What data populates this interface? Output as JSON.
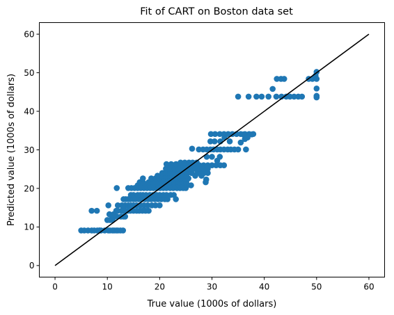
{
  "chart_data": {
    "type": "scatter",
    "title": "Fit of CART on Boston data set",
    "xlabel": "True value (1000s of dollars)",
    "ylabel": "Predicted value (1000s of dollars)",
    "xlim": [
      -3,
      63
    ],
    "ylim": [
      -3,
      63
    ],
    "xticks": [
      0,
      10,
      20,
      30,
      40,
      50,
      60
    ],
    "yticks": [
      0,
      10,
      20,
      30,
      40,
      50,
      60
    ],
    "grid": false,
    "series": [
      {
        "marker_color": "#1f77b4",
        "points": [
          [
            5,
            9.1
          ],
          [
            5.6,
            9.1
          ],
          [
            6.3,
            9.1
          ],
          [
            7,
            9.1
          ],
          [
            7.5,
            9.1
          ],
          [
            8.1,
            9.1
          ],
          [
            8.5,
            9.1
          ],
          [
            8.8,
            9.1
          ],
          [
            9.5,
            9.1
          ],
          [
            10.2,
            9.1
          ],
          [
            10.5,
            9.1
          ],
          [
            11,
            9.1
          ],
          [
            11.3,
            9.1
          ],
          [
            11.7,
            9.1
          ],
          [
            12,
            9.1
          ],
          [
            12.5,
            9.1
          ],
          [
            13,
            9.1
          ],
          [
            7,
            14.2
          ],
          [
            8,
            14.2
          ],
          [
            8.5,
            9.1
          ],
          [
            10,
            11.8
          ],
          [
            10.5,
            11.8
          ],
          [
            11,
            11.8
          ],
          [
            10.2,
            15.6
          ],
          [
            11,
            12.7
          ],
          [
            11.8,
            12.7
          ],
          [
            12.6,
            12.7
          ],
          [
            13.1,
            12.7
          ],
          [
            13.4,
            12.7
          ],
          [
            10.4,
            13.3
          ],
          [
            11.2,
            13.3
          ],
          [
            11.7,
            14.2
          ],
          [
            12,
            14.2
          ],
          [
            12.7,
            14.2
          ],
          [
            13.1,
            14.2
          ],
          [
            13.5,
            14.2
          ],
          [
            13.9,
            14.2
          ],
          [
            14.4,
            14.2
          ],
          [
            15,
            14.2
          ],
          [
            15.6,
            14.2
          ],
          [
            16.1,
            14.2
          ],
          [
            16.7,
            14.2
          ],
          [
            17.3,
            14.2
          ],
          [
            17.9,
            14.2
          ],
          [
            12,
            15.6
          ],
          [
            12.8,
            15.6
          ],
          [
            13.4,
            15.6
          ],
          [
            14,
            15.6
          ],
          [
            14.5,
            15.6
          ],
          [
            15,
            15.6
          ],
          [
            15.6,
            15.6
          ],
          [
            16.3,
            15.6
          ],
          [
            17,
            15.6
          ],
          [
            17.7,
            15.6
          ],
          [
            18.5,
            15.6
          ],
          [
            19.2,
            15.6
          ],
          [
            20,
            15.6
          ],
          [
            13.1,
            17.2
          ],
          [
            13.5,
            17.2
          ],
          [
            14,
            17.2
          ],
          [
            14.4,
            17.2
          ],
          [
            15,
            17.2
          ],
          [
            15.4,
            17.2
          ],
          [
            16,
            17.2
          ],
          [
            16.6,
            17.2
          ],
          [
            17.2,
            17.2
          ],
          [
            17.8,
            17.2
          ],
          [
            18.4,
            17.2
          ],
          [
            19.1,
            17.2
          ],
          [
            19.7,
            17.2
          ],
          [
            20.3,
            17.2
          ],
          [
            21,
            17.2
          ],
          [
            21.5,
            17.2
          ],
          [
            23.1,
            17.2
          ],
          [
            14.5,
            18.3
          ],
          [
            15,
            18.3
          ],
          [
            15.8,
            18.3
          ],
          [
            16.3,
            18.3
          ],
          [
            16.8,
            18.3
          ],
          [
            17.4,
            18.3
          ],
          [
            18.1,
            18.3
          ],
          [
            18.7,
            18.3
          ],
          [
            19.4,
            18.3
          ],
          [
            20,
            18.3
          ],
          [
            20.7,
            18.3
          ],
          [
            21.3,
            18.3
          ],
          [
            22.1,
            18.3
          ],
          [
            22.7,
            18.3
          ],
          [
            11.8,
            20.1
          ],
          [
            14,
            20.1
          ],
          [
            14.6,
            20.1
          ],
          [
            15.2,
            20.1
          ],
          [
            15.8,
            20.1
          ],
          [
            16.4,
            20.1
          ],
          [
            17,
            20.1
          ],
          [
            17.6,
            20.1
          ],
          [
            18.2,
            20.1
          ],
          [
            18.8,
            20.1
          ],
          [
            19.5,
            20.1
          ],
          [
            20.1,
            20.1
          ],
          [
            20.7,
            20.1
          ],
          [
            21.3,
            20.1
          ],
          [
            22,
            20.1
          ],
          [
            22.6,
            20.1
          ],
          [
            23.3,
            20.1
          ],
          [
            23.9,
            20.1
          ],
          [
            24.5,
            20.1
          ],
          [
            25,
            20.1
          ],
          [
            15.8,
            20.8
          ],
          [
            16.5,
            20.8
          ],
          [
            17.3,
            20.8
          ],
          [
            18.1,
            20.8
          ],
          [
            18.9,
            20.8
          ],
          [
            19.7,
            20.8
          ],
          [
            20.5,
            20.8
          ],
          [
            21.3,
            20.8
          ],
          [
            22.1,
            20.8
          ],
          [
            22.9,
            20.8
          ],
          [
            23.7,
            20.8
          ],
          [
            24.5,
            20.8
          ],
          [
            25.3,
            20.8
          ],
          [
            26,
            20.8
          ],
          [
            16.2,
            21.6
          ],
          [
            16.8,
            21.6
          ],
          [
            17.9,
            21.6
          ],
          [
            18.7,
            21.6
          ],
          [
            19.6,
            21.6
          ],
          [
            20.4,
            21.6
          ],
          [
            21.2,
            21.6
          ],
          [
            22,
            21.6
          ],
          [
            22.8,
            21.6
          ],
          [
            23.6,
            21.6
          ],
          [
            24.4,
            21.6
          ],
          [
            25.1,
            21.6
          ],
          [
            16.8,
            22.6
          ],
          [
            18.4,
            22.6
          ],
          [
            19.2,
            22.6
          ],
          [
            20,
            22.6
          ],
          [
            20.8,
            22.6
          ],
          [
            21.6,
            22.6
          ],
          [
            22.4,
            22.6
          ],
          [
            23.2,
            22.6
          ],
          [
            24,
            22.6
          ],
          [
            24.8,
            22.6
          ],
          [
            25.5,
            22.6
          ],
          [
            19.6,
            23.3
          ],
          [
            20.4,
            23.3
          ],
          [
            21.2,
            23.3
          ],
          [
            22,
            23.3
          ],
          [
            22.7,
            23.3
          ],
          [
            23.5,
            23.3
          ],
          [
            24.3,
            23.3
          ],
          [
            25.1,
            23.3
          ],
          [
            26.8,
            23.3
          ],
          [
            28,
            23.3
          ],
          [
            20.5,
            24
          ],
          [
            21.3,
            24
          ],
          [
            22.1,
            24
          ],
          [
            22.9,
            24
          ],
          [
            23.7,
            24
          ],
          [
            24.5,
            24
          ],
          [
            25.3,
            24
          ],
          [
            26.1,
            24
          ],
          [
            27.2,
            24
          ],
          [
            27.7,
            24
          ],
          [
            28.5,
            24
          ],
          [
            29.2,
            24
          ],
          [
            21.2,
            25.1
          ],
          [
            22,
            25.1
          ],
          [
            22.8,
            25.1
          ],
          [
            23.6,
            25.1
          ],
          [
            24.4,
            25.1
          ],
          [
            25.2,
            25.1
          ],
          [
            26,
            25.1
          ],
          [
            26.8,
            25.1
          ],
          [
            27.6,
            25.1
          ],
          [
            28.4,
            25.1
          ],
          [
            29.2,
            25.1
          ],
          [
            22,
            26
          ],
          [
            22.8,
            26
          ],
          [
            23.6,
            26
          ],
          [
            24.4,
            26
          ],
          [
            25.2,
            26
          ],
          [
            26,
            26
          ],
          [
            26.8,
            26
          ],
          [
            27.6,
            26
          ],
          [
            28.4,
            26
          ],
          [
            29.2,
            26
          ],
          [
            30,
            26
          ],
          [
            30.8,
            26
          ],
          [
            31.6,
            26
          ],
          [
            32.3,
            26
          ],
          [
            21.3,
            26.3
          ],
          [
            22.2,
            26.3
          ],
          [
            23.1,
            26.3
          ],
          [
            24,
            26.7
          ],
          [
            24.8,
            26.7
          ],
          [
            25.6,
            26.7
          ],
          [
            26.3,
            26.7
          ],
          [
            27.1,
            26.7
          ],
          [
            29,
            28.2
          ],
          [
            30,
            28.2
          ],
          [
            31.5,
            28.2
          ],
          [
            27.5,
            30.1
          ],
          [
            28.3,
            30.1
          ],
          [
            29,
            30.1
          ],
          [
            29.7,
            30.1
          ],
          [
            30.3,
            30.1
          ],
          [
            31,
            30.1
          ],
          [
            31.6,
            30.1
          ],
          [
            32.3,
            30.1
          ],
          [
            33,
            30.1
          ],
          [
            33.6,
            30.1
          ],
          [
            34.3,
            30.1
          ],
          [
            35,
            30.1
          ],
          [
            36.5,
            30.1
          ],
          [
            26.2,
            30.3
          ],
          [
            29.7,
            32.2
          ],
          [
            30.5,
            32.2
          ],
          [
            31.6,
            32.2
          ],
          [
            32.4,
            33.2
          ],
          [
            33.4,
            32.2
          ],
          [
            35.5,
            31.9
          ],
          [
            36.3,
            32.8
          ],
          [
            36.8,
            33.6
          ],
          [
            37.6,
            34
          ],
          [
            36,
            34
          ],
          [
            29.8,
            34.1
          ],
          [
            30.6,
            34.1
          ],
          [
            31.5,
            34.1
          ],
          [
            32.3,
            34.1
          ],
          [
            33.1,
            34.1
          ],
          [
            33.9,
            34.1
          ],
          [
            34.7,
            34.1
          ],
          [
            35.5,
            34.1
          ],
          [
            36.3,
            34.1
          ],
          [
            37.1,
            34.1
          ],
          [
            37.9,
            34.1
          ],
          [
            28,
            25.6
          ],
          [
            28.8,
            21.6
          ],
          [
            28.9,
            22.3
          ],
          [
            31,
            27.2
          ],
          [
            36.8,
            33.2
          ],
          [
            35,
            43.8
          ],
          [
            37,
            43.8
          ],
          [
            38.5,
            43.8
          ],
          [
            39.5,
            43.8
          ],
          [
            40.8,
            43.8
          ],
          [
            42.3,
            43.8
          ],
          [
            43.3,
            43.8
          ],
          [
            44.2,
            43.8
          ],
          [
            44.9,
            43.8
          ],
          [
            45.7,
            43.8
          ],
          [
            46.5,
            43.8
          ],
          [
            47.2,
            43.8
          ],
          [
            50,
            43.8
          ],
          [
            41.6,
            45.8
          ],
          [
            42.4,
            48.4
          ],
          [
            43.2,
            48.4
          ],
          [
            43.8,
            48.4
          ],
          [
            48.5,
            48.4
          ],
          [
            49.2,
            48.4
          ],
          [
            49.8,
            49.2
          ],
          [
            50,
            48.4
          ],
          [
            50,
            50.2
          ],
          [
            50,
            45.9
          ],
          [
            50,
            43.6
          ],
          [
            50,
            44
          ]
        ]
      }
    ],
    "reference_line": {
      "from": [
        0,
        0
      ],
      "to": [
        60,
        60
      ],
      "color": "#000000"
    }
  }
}
